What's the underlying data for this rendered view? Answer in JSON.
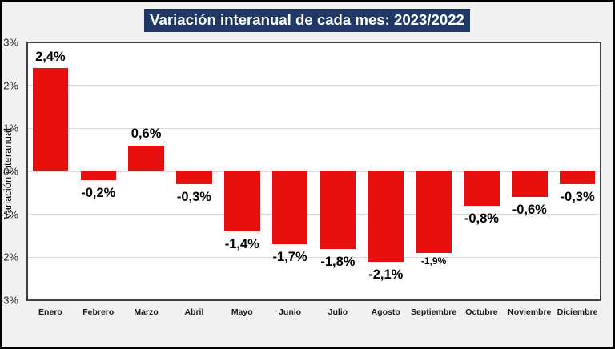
{
  "title": "Variación interanual de cada mes: 2023/2022",
  "colors": {
    "frame_background": "#f1f1f1",
    "frame_border": "#000000",
    "title_background": "#1f3864",
    "title_text": "#ffffff",
    "plot_background": "#ffffff",
    "plot_border": "#404040",
    "gridline": "#d9d9d9",
    "bar": "#e8100f"
  },
  "chart_data": {
    "type": "bar",
    "title": "Variación interanual de cada mes: 2023/2022",
    "categories": [
      "Enero",
      "Febrero",
      "Marzo",
      "Abril",
      "Mayo",
      "Junio",
      "Julio",
      "Agosto",
      "Septiembre",
      "Octubre",
      "Noviembre",
      "Diciembre"
    ],
    "values": [
      2.4,
      -0.2,
      0.6,
      -0.3,
      -1.4,
      -1.7,
      -1.8,
      -2.1,
      -1.9,
      -0.8,
      -0.6,
      -0.3
    ],
    "data_labels": [
      "2,4%",
      "-0,2%",
      "0,6%",
      "-0,3%",
      "-1,4%",
      "-1,7%",
      "-1,8%",
      "-2,1%",
      "-1,9%",
      "-0,8%",
      "-0,6%",
      "-0,3%"
    ],
    "small_label_indices": [
      8
    ],
    "xlabel": "",
    "ylabel": "Variación interanual",
    "ylim": [
      -3,
      3
    ],
    "ytick_labels": [
      "3%",
      "2%",
      "1%",
      "0%",
      "-1%",
      "-2%",
      "-3%"
    ],
    "ytick_values": [
      3,
      2,
      1,
      0,
      -1,
      -2,
      -3
    ],
    "grid": true,
    "legend_position": "none",
    "bar_color": "#e8100f"
  }
}
